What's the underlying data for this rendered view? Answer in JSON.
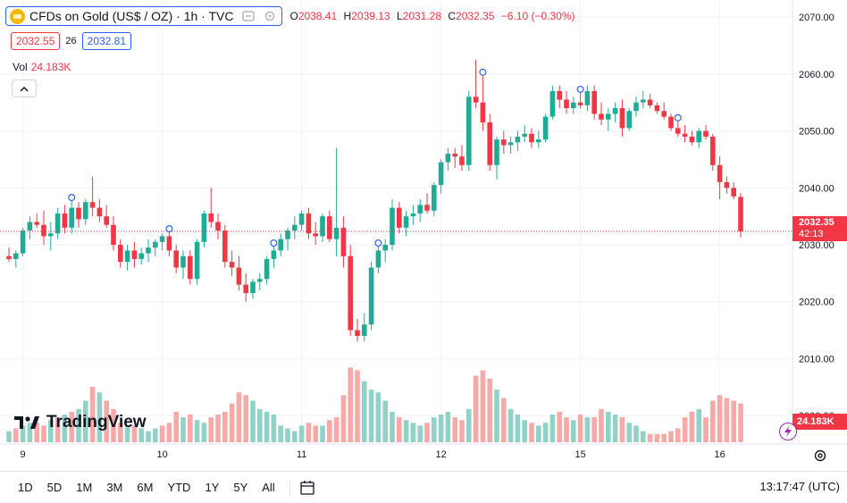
{
  "header": {
    "symbol_title": "CFDs on Gold (US$ / OZ) · 1h · TVC",
    "ohlc": [
      {
        "label": "O",
        "value": "2038.41"
      },
      {
        "label": "H",
        "value": "2039.13"
      },
      {
        "label": "L",
        "value": "2031.28"
      },
      {
        "label": "C",
        "value": "2032.35"
      }
    ],
    "change": "−6.10 (−0.30%)"
  },
  "bid_ask": {
    "bid": "2032.55",
    "spread": "26",
    "ask": "2032.81"
  },
  "volume": {
    "label": "Vol",
    "value": "24.183K"
  },
  "price_axis": {
    "ticks": [
      "2070.00",
      "2060.00",
      "2050.00",
      "2040.00",
      "2030.00",
      "2020.00",
      "2010.00",
      "2000.00"
    ],
    "last_price": "2032.35",
    "countdown": "42:13",
    "volume_label": "24.183K"
  },
  "time_axis": {
    "ticks": [
      "9",
      "10",
      "11",
      "12",
      "15",
      "16"
    ]
  },
  "logo": {
    "text": "TradingView"
  },
  "bottom_bar": {
    "ranges": [
      "1D",
      "5D",
      "1M",
      "3M",
      "6M",
      "YTD",
      "1Y",
      "5Y",
      "All"
    ],
    "clock": "13:17:47 (UTC)"
  },
  "colors": {
    "up": "#22ab94",
    "down": "#f23645",
    "vol_up": "#92d2c6",
    "vol_down": "#f7a9a7",
    "accent": "#2962ff"
  },
  "icons": [
    "gold-coin-icon",
    "hide-icon",
    "settings-gear-icon",
    "chevron-up-icon",
    "calendar-range-icon",
    "flash-icon"
  ],
  "chart_data": {
    "type": "candlestick",
    "title": "CFDs on Gold (US$ / OZ) · 1h · TVC",
    "ylim": [
      1995,
      2073
    ],
    "x_labels": [
      "9",
      "10",
      "11",
      "12",
      "15",
      "16"
    ],
    "x_label_index": [
      2,
      22,
      42,
      62,
      82,
      102
    ],
    "candles": [
      [
        2028,
        2029.5,
        2027,
        2027.5
      ],
      [
        2027.5,
        2029,
        2026,
        2028.5
      ],
      [
        2028.5,
        2033,
        2028,
        2032.5
      ],
      [
        2032.5,
        2035,
        2031,
        2034
      ],
      [
        2034,
        2035.5,
        2033,
        2033.5
      ],
      [
        2033.5,
        2036,
        2030,
        2031.5
      ],
      [
        2031.5,
        2034,
        2029,
        2032
      ],
      [
        2032,
        2036.5,
        2031,
        2035.5
      ],
      [
        2035.5,
        2037,
        2032,
        2033
      ],
      [
        2033,
        2038,
        2032,
        2036.5
      ],
      [
        2036.5,
        2037.5,
        2033,
        2034.5
      ],
      [
        2034.5,
        2038,
        2033.5,
        2037.5
      ],
      [
        2037.5,
        2042,
        2035,
        2036.5
      ],
      [
        2036.5,
        2038,
        2034,
        2035
      ],
      [
        2035,
        2037,
        2033,
        2033.5
      ],
      [
        2033.5,
        2035,
        2029,
        2030
      ],
      [
        2030,
        2031,
        2026,
        2027
      ],
      [
        2027,
        2030,
        2025.5,
        2029
      ],
      [
        2029,
        2030.5,
        2026,
        2027.5
      ],
      [
        2027.5,
        2029.5,
        2026.5,
        2028.5
      ],
      [
        2028.5,
        2031,
        2027,
        2029.5
      ],
      [
        2029.5,
        2031,
        2028,
        2030.5
      ],
      [
        2030.5,
        2032,
        2029,
        2031.5
      ],
      [
        2031.5,
        2032.5,
        2028,
        2029
      ],
      [
        2029,
        2030,
        2025,
        2026
      ],
      [
        2026,
        2029,
        2024,
        2028
      ],
      [
        2028,
        2029,
        2023,
        2024
      ],
      [
        2024,
        2031,
        2023,
        2030.5
      ],
      [
        2030.5,
        2036,
        2029.5,
        2035.5
      ],
      [
        2035.5,
        2040,
        2033,
        2034
      ],
      [
        2034,
        2035.5,
        2031,
        2032.5
      ],
      [
        2032.5,
        2033.5,
        2026,
        2027
      ],
      [
        2027,
        2029,
        2024.5,
        2026
      ],
      [
        2026,
        2028,
        2022,
        2023
      ],
      [
        2023,
        2025,
        2020,
        2021.5
      ],
      [
        2021.5,
        2024,
        2020.5,
        2023.5
      ],
      [
        2023.5,
        2025,
        2022,
        2024
      ],
      [
        2024,
        2028,
        2023,
        2027.5
      ],
      [
        2027.5,
        2030,
        2026,
        2029
      ],
      [
        2029,
        2032,
        2028,
        2031
      ],
      [
        2031,
        2033,
        2029,
        2032.5
      ],
      [
        2032.5,
        2035,
        2031,
        2033.5
      ],
      [
        2033.5,
        2036,
        2032.5,
        2035.5
      ],
      [
        2035.5,
        2036.5,
        2031,
        2032
      ],
      [
        2032,
        2034,
        2030,
        2031.5
      ],
      [
        2031.5,
        2035.5,
        2030.5,
        2035
      ],
      [
        2035,
        2036,
        2030.5,
        2031
      ],
      [
        2031,
        2047,
        2028,
        2033
      ],
      [
        2033,
        2035,
        2026,
        2028
      ],
      [
        2028,
        2030,
        2014,
        2015
      ],
      [
        2015,
        2017,
        2013,
        2014
      ],
      [
        2014,
        2018,
        2013,
        2016
      ],
      [
        2016,
        2027,
        2015,
        2026
      ],
      [
        2026,
        2030,
        2025,
        2029
      ],
      [
        2029,
        2031,
        2027,
        2030
      ],
      [
        2030,
        2038,
        2029,
        2036.5
      ],
      [
        2036.5,
        2037.5,
        2032,
        2033
      ],
      [
        2033,
        2036,
        2031.5,
        2035
      ],
      [
        2035,
        2037,
        2033.5,
        2035.5
      ],
      [
        2035.5,
        2038,
        2034,
        2037
      ],
      [
        2037,
        2039,
        2035.5,
        2036
      ],
      [
        2036,
        2041,
        2035,
        2040.5
      ],
      [
        2040.5,
        2045,
        2039,
        2044.5
      ],
      [
        2044.5,
        2047,
        2043,
        2046
      ],
      [
        2046,
        2047,
        2043.5,
        2045.5
      ],
      [
        2045.5,
        2047.5,
        2043,
        2044
      ],
      [
        2044,
        2057,
        2043,
        2056
      ],
      [
        2056,
        2062.5,
        2054,
        2055
      ],
      [
        2055,
        2060,
        2050,
        2051.5
      ],
      [
        2051.5,
        2053,
        2043,
        2044
      ],
      [
        2044,
        2049,
        2041.5,
        2048.5
      ],
      [
        2048.5,
        2050,
        2046,
        2047.5
      ],
      [
        2047.5,
        2049,
        2046,
        2048
      ],
      [
        2048,
        2050,
        2046.5,
        2049
      ],
      [
        2049,
        2051,
        2048,
        2049.5
      ],
      [
        2049.5,
        2050.5,
        2047,
        2048
      ],
      [
        2048,
        2050,
        2047,
        2048.5
      ],
      [
        2048.5,
        2053,
        2048,
        2052.5
      ],
      [
        2052.5,
        2058,
        2052,
        2057
      ],
      [
        2057,
        2058,
        2054,
        2055.5
      ],
      [
        2055.5,
        2057,
        2053,
        2054
      ],
      [
        2054,
        2056,
        2053,
        2055
      ],
      [
        2055,
        2057,
        2054,
        2054.5
      ],
      [
        2054.5,
        2058,
        2053.5,
        2057
      ],
      [
        2057,
        2058,
        2052,
        2053
      ],
      [
        2053,
        2055,
        2051,
        2052
      ],
      [
        2052,
        2054,
        2050,
        2053
      ],
      [
        2053,
        2055,
        2051.5,
        2054
      ],
      [
        2054,
        2055.5,
        2049,
        2050.5
      ],
      [
        2050.5,
        2054,
        2050,
        2053.5
      ],
      [
        2053.5,
        2056,
        2052.5,
        2055
      ],
      [
        2055,
        2057,
        2054,
        2055.5
      ],
      [
        2055.5,
        2056.5,
        2054,
        2054.5
      ],
      [
        2054.5,
        2055,
        2053,
        2053.5
      ],
      [
        2053.5,
        2055,
        2052,
        2052.5
      ],
      [
        2052.5,
        2053,
        2050,
        2050.5
      ],
      [
        2050.5,
        2052,
        2049,
        2049.5
      ],
      [
        2049.5,
        2051,
        2048,
        2049
      ],
      [
        2049,
        2050,
        2047.5,
        2048
      ],
      [
        2048,
        2050.5,
        2047,
        2050
      ],
      [
        2050,
        2051,
        2048.5,
        2049
      ],
      [
        2049,
        2049.5,
        2043,
        2044
      ],
      [
        2044,
        2045.5,
        2038,
        2041
      ],
      [
        2041,
        2042,
        2039,
        2040
      ],
      [
        2040,
        2041,
        2038,
        2038.5
      ],
      [
        2038.41,
        2039.13,
        2031.28,
        2032.35
      ]
    ],
    "volume_tone": [
      0,
      1,
      0,
      0,
      1,
      1,
      0,
      1,
      0,
      1,
      0,
      0,
      1,
      0,
      1,
      1,
      1,
      0,
      1,
      0,
      0,
      0,
      1,
      1,
      1,
      0,
      1,
      0,
      0,
      1,
      1,
      1,
      1,
      1,
      1,
      0,
      0,
      0,
      0,
      0,
      0,
      0,
      0,
      1,
      1,
      0,
      1,
      1,
      1,
      1,
      1,
      0,
      0,
      0,
      0,
      0,
      1,
      0,
      0,
      0,
      1,
      0,
      0,
      0,
      1,
      1,
      0,
      1,
      1,
      1,
      0,
      1,
      0,
      0,
      0,
      1,
      0,
      0,
      0,
      1,
      1,
      0,
      1,
      0,
      1,
      1,
      0,
      0,
      1,
      0,
      0,
      0,
      1,
      1,
      1,
      1,
      1,
      1,
      1,
      0,
      1,
      1,
      1,
      1,
      1,
      1
    ],
    "volume_relative": [
      0.2,
      0.25,
      0.3,
      0.35,
      0.35,
      0.3,
      0.4,
      0.45,
      0.5,
      0.55,
      0.6,
      0.75,
      1.0,
      0.9,
      0.75,
      0.6,
      0.35,
      0.3,
      0.3,
      0.25,
      0.2,
      0.25,
      0.3,
      0.35,
      0.55,
      0.45,
      0.5,
      0.4,
      0.35,
      0.45,
      0.5,
      0.55,
      0.7,
      0.9,
      0.85,
      0.75,
      0.6,
      0.55,
      0.5,
      0.3,
      0.25,
      0.2,
      0.3,
      0.35,
      0.3,
      0.3,
      0.4,
      0.45,
      0.85,
      1.35,
      1.3,
      1.1,
      0.95,
      0.9,
      0.75,
      0.55,
      0.45,
      0.4,
      0.35,
      0.3,
      0.35,
      0.45,
      0.5,
      0.55,
      0.45,
      0.4,
      0.6,
      1.2,
      1.3,
      1.15,
      0.95,
      0.8,
      0.6,
      0.5,
      0.4,
      0.35,
      0.3,
      0.35,
      0.5,
      0.55,
      0.45,
      0.4,
      0.5,
      0.45,
      0.45,
      0.6,
      0.55,
      0.5,
      0.45,
      0.35,
      0.3,
      0.2,
      0.15,
      0.15,
      0.15,
      0.2,
      0.25,
      0.45,
      0.55,
      0.6,
      0.45,
      0.75,
      0.85,
      0.8,
      0.75,
      0.7
    ]
  }
}
